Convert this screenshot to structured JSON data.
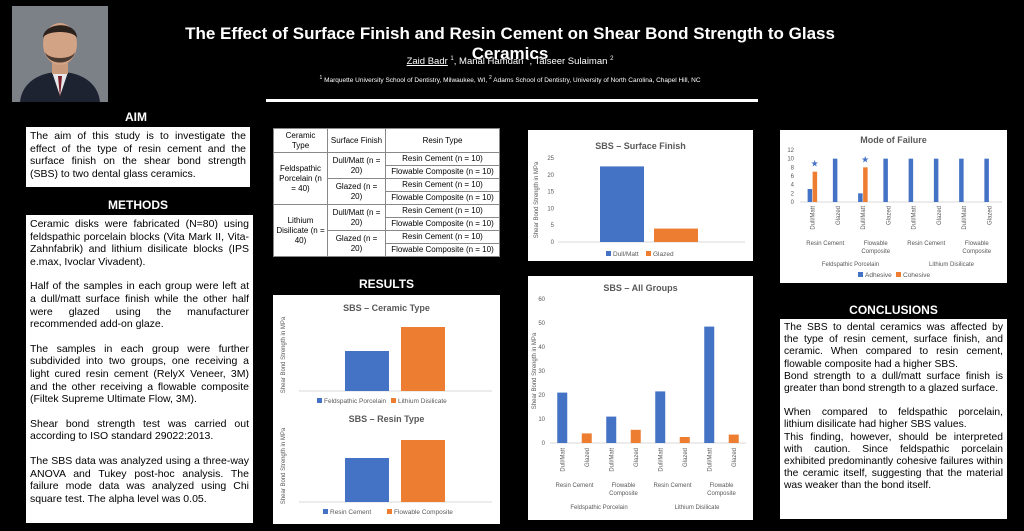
{
  "header": {
    "title": "The Effect of Surface Finish and Resin Cement on Shear Bond Strength to Glass Ceramics",
    "authors": [
      {
        "name": "Zaid Badr",
        "sup": "1"
      },
      {
        "name": "Manal Hamdan",
        "sup": "1"
      },
      {
        "name": "Taiseer Sulaiman",
        "sup": "2"
      }
    ],
    "affiliation_1": "Marquette University School of Dentistry, Milwaukee, WI,",
    "affiliation_2": "Adams School of Dentistry, University of North Carolina, Chapel Hill, NC"
  },
  "aim": {
    "heading": "AIM",
    "text": "The aim of this study is to investigate the effect of the type of resin cement and the surface finish on the shear bond strength (SBS) to two dental glass ceramics."
  },
  "methods": {
    "heading": "METHODS",
    "paragraphs": [
      "Ceramic disks were fabricated (N=80) using feldspathic porcelain blocks (Vita Mark II, Vita- Zahnfabrik) and lithium disilicate blocks (IPS e.max, Ivoclar Vivadent).",
      "Half of the samples in each group were left at a dull/matt surface finish while the other half were glazed using the manufacturer recommended add-on glaze.",
      "The samples in each group were further subdivided into two groups, one receiving a light cured resin cement (RelyX Veneer, 3M) and the other receiving a flowable composite (Filtek Supreme Ultimate Flow, 3M).",
      "Shear bond strength test was carried out according to ISO standard 29022:2013.",
      "The SBS data was analyzed using a three-way ANOVA and Tukey post-hoc analysis. The failure mode data was analyzed using Chi square test. The alpha level was 0.05."
    ]
  },
  "design_table": {
    "headers": [
      "Ceramic Type",
      "Surface Finish",
      "Resin Type"
    ],
    "ceramic_1": "Feldspathic Porcelain (n = 40)",
    "ceramic_2": "Lithium Disilicate (n = 40)",
    "finish_dull": "Dull/Matt (n = 20)",
    "finish_glazed": "Glazed (n = 20)",
    "resin_cement": "Resin Cement (n = 10)",
    "flowable": "Flowable Composite (n = 10)"
  },
  "results": {
    "heading": "RESULTS"
  },
  "conclusions": {
    "heading": "CONCLUSIONS",
    "p1": "The SBS to dental ceramics was affected by the type of resin cement, surface finish, and ceramic. When compared to resin cement, flowable composite had a higher SBS.",
    "p2": "Bond strength to a dull/matt surface finish is greater than bond strength to a glazed surface.",
    "p3": "When compared to feldspathic porcelain, lithium disilicate had higher SBS values.",
    "p4": "This finding, however, should be interpreted with caution. Since feldspathic porcelain exhibited predominantly cohesive failures within the ceramic itself, suggesting that the material was weaker than the bond itself."
  },
  "colors": {
    "blue": "#4472C4",
    "orange": "#ED7D31"
  },
  "chart_data": [
    {
      "id": "ceramic",
      "type": "bar",
      "title": "SBS – Ceramic Type",
      "ylabel": "Shear Bond Strength in MPa",
      "series": [
        {
          "name": "Feldspathic Porcelain",
          "values": [
            10
          ]
        },
        {
          "name": "Lithium Disilicate",
          "values": [
            16
          ]
        }
      ],
      "ylim": [
        0,
        18
      ]
    },
    {
      "id": "resin",
      "type": "bar",
      "title": "SBS – Resin Type",
      "ylabel": "Shear Bond Strength in MPa",
      "series": [
        {
          "name": "Resin Cement",
          "values": [
            11
          ]
        },
        {
          "name": "Flowable Composite",
          "values": [
            15.5
          ]
        }
      ],
      "ylim": [
        0,
        18
      ]
    },
    {
      "id": "surface",
      "type": "bar",
      "title": "SBS – Surface Finish",
      "ylabel": "Shear Bond Strength in MPa",
      "yticks": [
        0,
        5,
        10,
        15,
        20,
        25
      ],
      "series": [
        {
          "name": "Dull/Matt",
          "values": [
            22.5
          ]
        },
        {
          "name": "Glazed",
          "values": [
            4
          ]
        }
      ],
      "ylim": [
        0,
        25
      ]
    },
    {
      "id": "all",
      "type": "bar",
      "title": "SBS – All Groups",
      "ylabel": "Shear Bond Strength in MPa",
      "yticks": [
        0,
        10,
        20,
        30,
        40,
        50,
        60
      ],
      "categories": [
        "Dull/Matt",
        "Glazed",
        "Dull/Matt",
        "Glazed",
        "Dull/Matt",
        "Glazed",
        "Dull/Matt",
        "Glazed"
      ],
      "values": [
        21,
        4,
        11,
        5.5,
        21.5,
        2.5,
        48.5,
        3.5
      ],
      "colors": [
        "#4472C4",
        "#ED7D31",
        "#4472C4",
        "#ED7D31",
        "#4472C4",
        "#ED7D31",
        "#4472C4",
        "#ED7D31"
      ],
      "group_labels": [
        "Resin Cement",
        "Flowable Composite",
        "Resin Cement",
        "Flowable Composite"
      ],
      "ceramic_labels": [
        "Feldspathic Porcelain",
        "Lithium Disilicate"
      ],
      "ylim": [
        0,
        60
      ]
    },
    {
      "id": "failure",
      "type": "bar",
      "title": "Mode of Failure",
      "yticks": [
        0,
        2,
        4,
        6,
        8,
        10,
        12
      ],
      "categories": [
        "Dull/Matt",
        "Glazed",
        "Dull/Matt",
        "Glazed",
        "Dull/Matt",
        "Glazed",
        "Dull/Matt",
        "Glazed"
      ],
      "series": [
        {
          "name": "Adhesive",
          "values": [
            3,
            10,
            2,
            10,
            10,
            10,
            10,
            10
          ]
        },
        {
          "name": "Cohesive",
          "values": [
            7,
            0,
            8,
            0,
            0,
            0,
            0,
            0
          ]
        }
      ],
      "star_marks": [
        0,
        2
      ],
      "group_labels": [
        "Resin Cement",
        "Flowable Composite",
        "Resin Cement",
        "Flowable Composite"
      ],
      "ceramic_labels": [
        "Feldspathic Porcelain",
        "Lithium Disilicate"
      ],
      "ylim": [
        0,
        12
      ]
    }
  ]
}
